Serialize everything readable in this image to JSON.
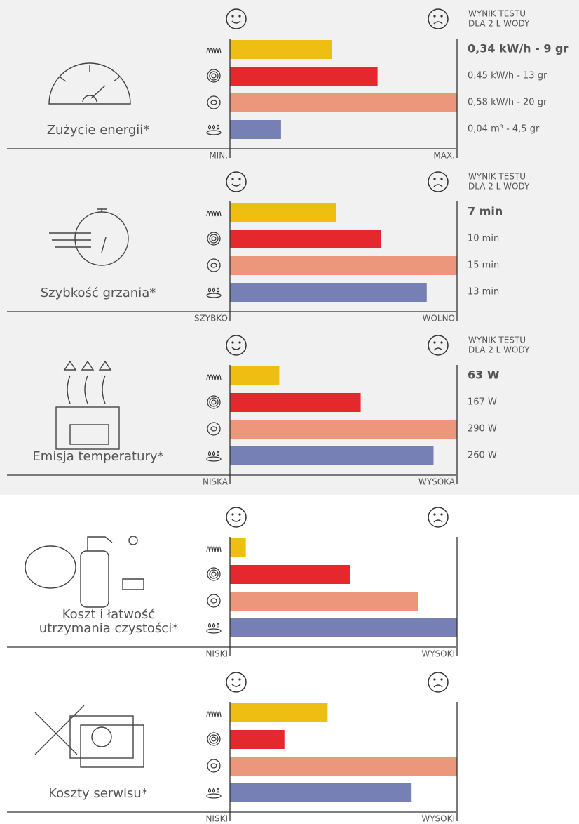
{
  "chart_data": [
    {
      "type": "bar",
      "title": [
        "Zużycie energii*"
      ],
      "header": [
        "WYNIK TESTU",
        "DLA 2 L WODY"
      ],
      "values": [
        9,
        13,
        20,
        4.5
      ],
      "value_labels": [
        "0,34 kW/h  - 9 gr",
        "0,45 kW/h  - 13 gr",
        "0,58 kW/h  - 20 gr",
        "0,04 m³  - 4,5 gr"
      ],
      "xlim": [
        0,
        20
      ],
      "axis_labels": [
        "MIN.",
        "MAX."
      ],
      "colors": [
        "#efbe12",
        "#e5282e",
        "#ec967b",
        "#7680b5"
      ]
    },
    {
      "type": "bar",
      "title": [
        "Szybkość grzania*"
      ],
      "header": [
        "WYNIK TESTU",
        "DLA 2 L WODY"
      ],
      "values": [
        7,
        10,
        15,
        13
      ],
      "value_labels": [
        "7 min",
        "10 min",
        "15 min",
        "13 min"
      ],
      "xlim": [
        0,
        15
      ],
      "axis_labels": [
        "SZYBKO",
        "WOLNO"
      ],
      "colors": [
        "#efbe12",
        "#e5282e",
        "#ec967b",
        "#7680b5"
      ]
    },
    {
      "type": "bar",
      "title": [
        "Emisja temperatury*"
      ],
      "header": [
        "WYNIK TESTU",
        "DLA 2 L WODY"
      ],
      "values": [
        63,
        167,
        290,
        260
      ],
      "value_labels": [
        "63 W",
        "167 W",
        "290 W",
        "260 W"
      ],
      "xlim": [
        0,
        290
      ],
      "axis_labels": [
        "NISKA",
        "WYSOKA"
      ],
      "colors": [
        "#efbe12",
        "#e5282e",
        "#ec967b",
        "#7680b5"
      ]
    },
    {
      "type": "bar",
      "title": [
        "Koszt i łatwość",
        "utrzymania czystości*"
      ],
      "values": [
        7,
        53,
        83,
        100
      ],
      "xlim": [
        0,
        100
      ],
      "axis_labels": [
        "NISKI",
        "WYSOKI"
      ],
      "colors": [
        "#efbe12",
        "#e5282e",
        "#ec967b",
        "#7680b5"
      ]
    },
    {
      "type": "bar",
      "title": [
        "Koszty serwisu*"
      ],
      "values": [
        43,
        24,
        100,
        80
      ],
      "xlim": [
        0,
        100
      ],
      "axis_labels": [
        "NISKI",
        "WYSOKI"
      ],
      "colors": [
        "#efbe12",
        "#e5282e",
        "#ec967b",
        "#7680b5"
      ]
    }
  ]
}
